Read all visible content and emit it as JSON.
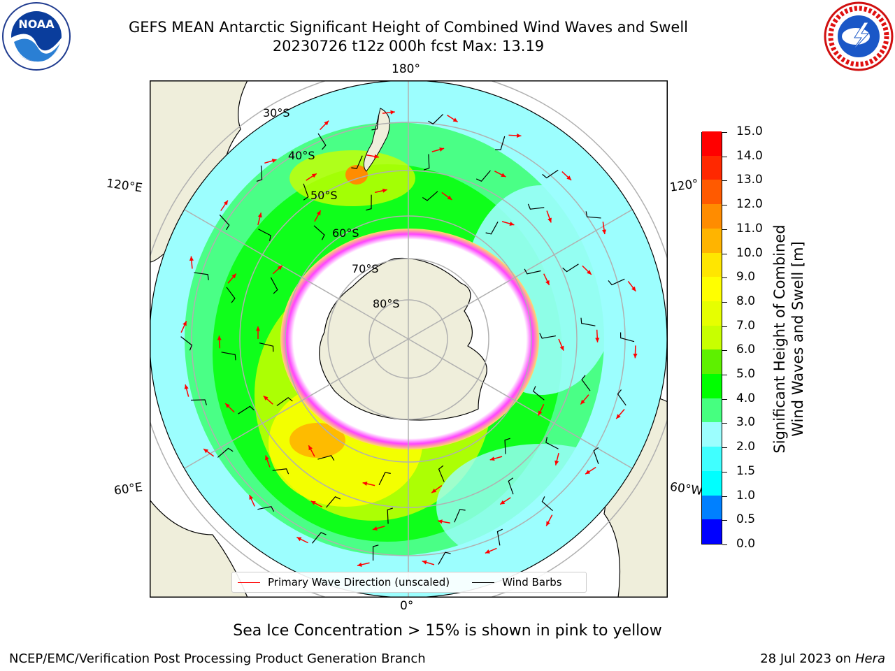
{
  "title": {
    "line1": "GEFS MEAN Antarctic Significant Height of Combined Wind Waves and Swell",
    "line2": "20230726 t12z 000h fcst   Max: 13.19"
  },
  "logos": {
    "left": "noaa-logo",
    "left_text": "NOAA",
    "right": "nws-logo",
    "right_text": "NATIONAL WEATHER SERVICE"
  },
  "map": {
    "projection": "south-polar-stereographic",
    "longitude_labels": {
      "top": "180°",
      "bottom": "0°",
      "left_upper": "120°E",
      "left_lower": "60°E",
      "right_upper": "120°",
      "right_lower": "60°W"
    },
    "latitude_labels": [
      "30°S",
      "40°S",
      "50°S",
      "60°S",
      "70°S",
      "80°S"
    ],
    "colors": {
      "land": "#efeedb",
      "ocean_low": "#9cfefe",
      "ice": "#ffffff",
      "ice_edge": "#ff44ff",
      "grid": "#b0b0b0",
      "wave_arrow": "#ff0000",
      "wind_barb": "#000000"
    }
  },
  "colorbar": {
    "title_line1": "Significant Height of Combined",
    "title_line2": "Wind Waves and Swell [m]",
    "ticks": [
      "0.0",
      "0.5",
      "1.0",
      "1.5",
      "2.0",
      "3.0",
      "4.0",
      "5.0",
      "6.0",
      "7.0",
      "8.0",
      "9.0",
      "10.0",
      "11.0",
      "12.0",
      "13.0",
      "14.0",
      "15.0"
    ],
    "colors": [
      "#0000ff",
      "#0080ff",
      "#00ffff",
      "#40ffff",
      "#9cfefe",
      "#46ff80",
      "#00ff00",
      "#5ef000",
      "#c8ff00",
      "#e6ff00",
      "#ffff00",
      "#ffe600",
      "#ffb400",
      "#ff8c00",
      "#ff5a00",
      "#ff2800",
      "#ff0000"
    ]
  },
  "legend": {
    "wave": "Primary Wave Direction (unscaled)",
    "wind": "Wind Barbs",
    "wave_color": "#ff0000",
    "wind_color": "#000000"
  },
  "footer": {
    "note": "Sea Ice Concentration > 15% is shown in pink to yellow",
    "left": "NCEP/EMC/Verification Post Processing Product Generation Branch",
    "right_date": "28 Jul 2023 on ",
    "right_machine": "Hera"
  }
}
